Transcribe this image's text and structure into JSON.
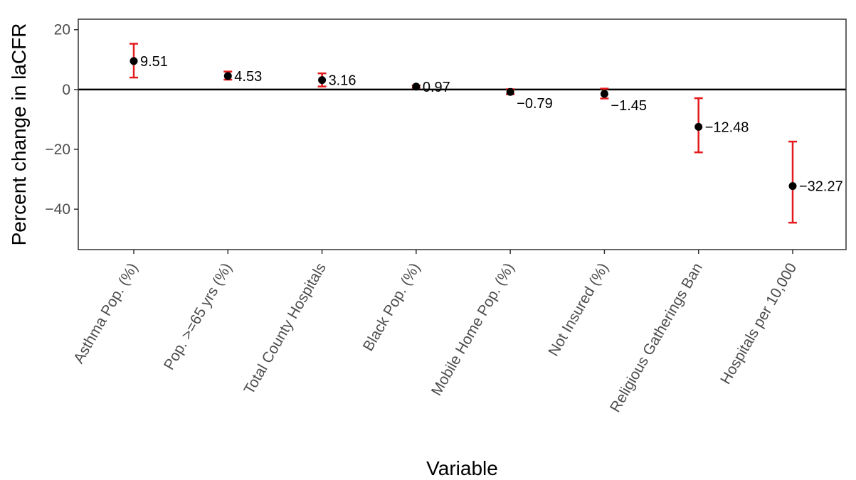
{
  "chart_data": {
    "type": "scatter",
    "subtype": "point-with-error-bars",
    "xlabel": "Variable",
    "ylabel": "Percent change in laCFR",
    "categories": [
      "Asthma Pop. (%)",
      "Pop. >=65 yrs (%)",
      "Total County Hospitals",
      "Black Pop. (%)",
      "Mobile Home Pop. (%)",
      "Not Insured (%)",
      "Religious Gatherings Ban",
      "Hospitals per 10,000"
    ],
    "values": [
      9.51,
      4.53,
      3.16,
      0.97,
      -0.79,
      -1.45,
      -12.48,
      -32.27
    ],
    "value_labels": [
      "9.51",
      "4.53",
      "3.16",
      "0.97",
      "−0.79",
      "−1.45",
      "−12.48",
      "−32.27"
    ],
    "ci_lower": [
      4.0,
      3.3,
      1.0,
      0.6,
      -1.6,
      -3.0,
      -21.0,
      -44.5
    ],
    "ci_upper": [
      15.3,
      6.0,
      5.4,
      1.4,
      0.1,
      0.3,
      -2.9,
      -17.4
    ],
    "ylim": [
      -53.5,
      23.5
    ],
    "yticks": [
      20,
      0,
      -20,
      -40
    ],
    "ytick_labels": [
      "20",
      "0",
      "−20",
      "−40"
    ],
    "reference_line_y": 0,
    "grid": false,
    "legend": "none",
    "colors": {
      "point": "#000000",
      "error_bar": "#e41a1c",
      "reference_line": "#000000",
      "panel_border": "#333333"
    }
  }
}
